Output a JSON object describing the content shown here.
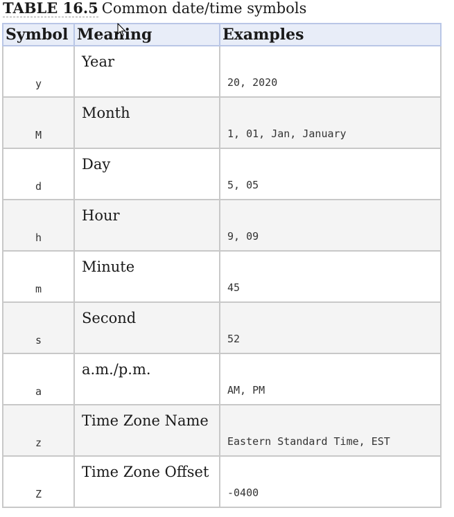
{
  "caption": {
    "number": "TABLE 16.5",
    "title": "Common date/time symbols"
  },
  "table": {
    "headers": [
      "Symbol",
      "Meaning",
      "Examples"
    ],
    "rows": [
      {
        "symbol": "y",
        "meaning": "Year",
        "examples": "20, 2020"
      },
      {
        "symbol": "M",
        "meaning": "Month",
        "examples": "1, 01, Jan, January"
      },
      {
        "symbol": "d",
        "meaning": "Day",
        "examples": "5, 05"
      },
      {
        "symbol": "h",
        "meaning": "Hour",
        "examples": "9, 09"
      },
      {
        "symbol": "m",
        "meaning": "Minute",
        "examples": "45"
      },
      {
        "symbol": "s",
        "meaning": "Second",
        "examples": "52"
      },
      {
        "symbol": "a",
        "meaning": "a.m./p.m.",
        "examples": "AM, PM"
      },
      {
        "symbol": "z",
        "meaning": "Time Zone Name",
        "examples": "Eastern Standard Time, EST"
      },
      {
        "symbol": "Z",
        "meaning": "Time Zone Offset",
        "examples": "-0400"
      }
    ]
  }
}
